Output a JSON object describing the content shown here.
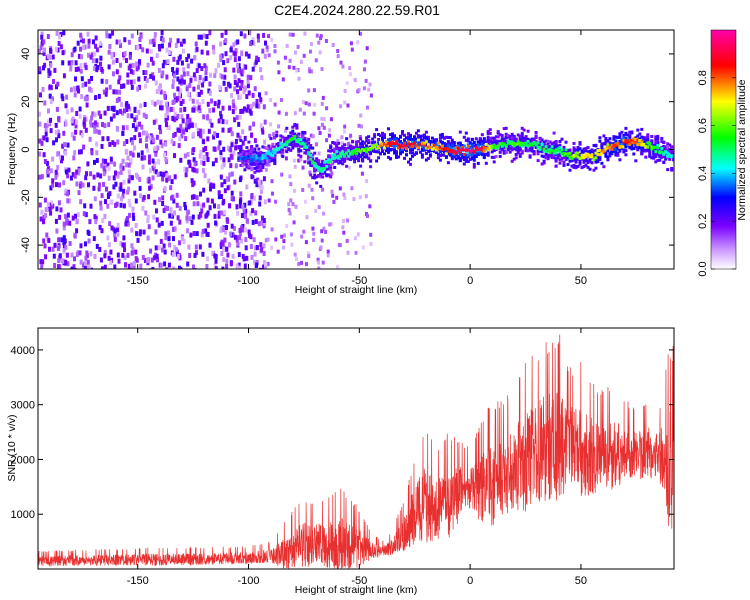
{
  "figure_title": "C2E4.2024.280.22.59.R01",
  "colors": {
    "snr_line": "#e83030",
    "spectrogram_background": "#ffffff",
    "low_amplitude": "#7a00ff"
  },
  "chart_data": [
    {
      "type": "heatmap",
      "title": "C2E4.2024.280.22.59.R01",
      "xlabel": "Height of straight line (km)",
      "ylabel": "Frequency (Hz)",
      "xlim": [
        -195,
        92
      ],
      "ylim": [
        -50,
        50
      ],
      "xticks": [
        -150,
        -100,
        -50,
        0,
        50
      ],
      "yticks": [
        -40,
        -20,
        0,
        20,
        40
      ],
      "colorbar": {
        "label": "Normalized spectral amplitude",
        "range": [
          0,
          1
        ],
        "ticks": [
          0.0,
          0.2,
          0.4,
          0.6,
          0.8
        ],
        "colormap": "rainbow (white, violet, blue, cyan, green, yellow, red, magenta)"
      },
      "noise_region": {
        "x": [
          -195,
          -93
        ],
        "amplitude": "violet speckle across full band"
      },
      "sparse_region": {
        "x": [
          -93,
          -45
        ],
        "amplitude": "faint violet speckle"
      },
      "signal_track": {
        "x": [
          -105,
          -95,
          -90,
          -85,
          -80,
          -75,
          -72,
          -68,
          -62,
          -56,
          -50,
          -45,
          -40,
          -35,
          -30,
          -25,
          -20,
          -15,
          -10,
          -5,
          0,
          5,
          10,
          15,
          20,
          25,
          30,
          35,
          40,
          45,
          50,
          55,
          60,
          65,
          70,
          75,
          80,
          85,
          90
        ],
        "frequency": [
          -3,
          -3,
          -1,
          3,
          6,
          2,
          -4,
          -8,
          -2,
          -1,
          0,
          1,
          3,
          3,
          2,
          3,
          2,
          2,
          0,
          0,
          0,
          1,
          2,
          3,
          3,
          3,
          2,
          0,
          0,
          -2,
          -2,
          -2,
          0,
          2,
          4,
          4,
          2,
          0,
          -2
        ],
        "peak_amplitude": [
          0.3,
          0.35,
          0.4,
          0.45,
          0.5,
          0.45,
          0.5,
          0.45,
          0.45,
          0.5,
          0.55,
          0.6,
          0.75,
          0.9,
          0.85,
          0.85,
          0.75,
          0.8,
          0.85,
          0.9,
          0.95,
          0.85,
          0.55,
          0.5,
          0.55,
          0.5,
          0.5,
          0.5,
          0.5,
          0.6,
          0.7,
          0.7,
          0.75,
          0.8,
          0.85,
          0.8,
          0.6,
          0.5,
          0.4
        ]
      }
    },
    {
      "type": "line",
      "xlabel": "Height of straight line (km)",
      "ylabel": "SNR (10 * v/v)",
      "xlim": [
        -195,
        92
      ],
      "ylim": [
        0,
        4400
      ],
      "xticks": [
        -150,
        -100,
        -50,
        0,
        50
      ],
      "yticks": [
        1000,
        2000,
        3000,
        4000
      ],
      "series": [
        {
          "x": [
            -195,
            -180,
            -160,
            -140,
            -120,
            -100,
            -90,
            -80,
            -75,
            -70,
            -65,
            -60,
            -55,
            -50,
            -45,
            -40,
            -35,
            -30,
            -25,
            -20,
            -15,
            -10,
            -5,
            0,
            5,
            10,
            15,
            20,
            25,
            30,
            35,
            40,
            45,
            50,
            55,
            60,
            65,
            70,
            75,
            80,
            85,
            90
          ],
          "mean": [
            150,
            160,
            170,
            180,
            190,
            210,
            250,
            350,
            450,
            500,
            450,
            450,
            450,
            400,
            350,
            330,
            400,
            650,
            1000,
            1200,
            1100,
            1200,
            1400,
            1500,
            1500,
            1600,
            1700,
            1900,
            2000,
            2200,
            2300,
            2300,
            2300,
            2200,
            2100,
            2050,
            2100,
            2150,
            2100,
            2150,
            2100,
            1900
          ],
          "max": [
            330,
            350,
            370,
            400,
            400,
            420,
            500,
            1100,
            1300,
            1200,
            1300,
            1500,
            1400,
            1100,
            700,
            500,
            700,
            1300,
            2100,
            2700,
            2200,
            2500,
            2400,
            2200,
            2700,
            3100,
            3100,
            3400,
            3800,
            4000,
            4200,
            4350,
            3700,
            3800,
            3500,
            3300,
            3400,
            3100,
            3000,
            3100,
            2900,
            4100
          ]
        }
      ]
    }
  ]
}
